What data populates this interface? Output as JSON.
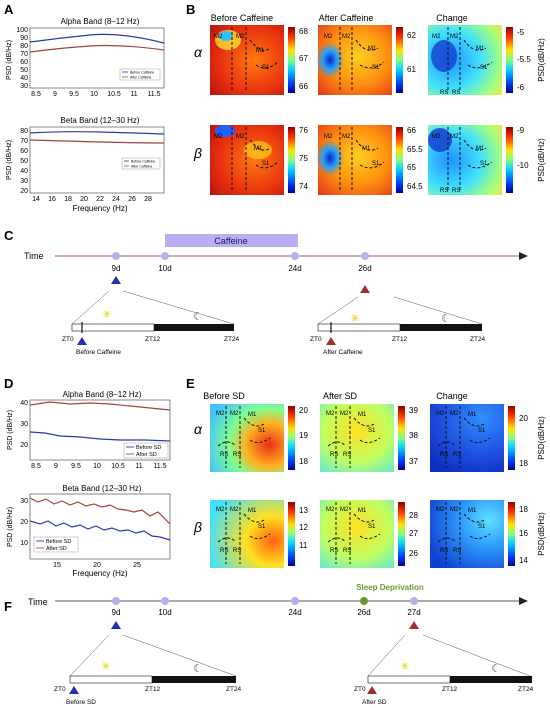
{
  "panels": {
    "A": {
      "letter": "A",
      "alpha": {
        "title": "Alpha Band (8–12 Hz)",
        "ylabel": "PSD (dB/Hz)",
        "yticks": [
          "30",
          "40",
          "50",
          "60",
          "70",
          "80",
          "90",
          "100"
        ],
        "xticks": [
          "8.5",
          "9",
          "9.5",
          "10",
          "10.5",
          "11",
          "11.5"
        ],
        "legend": [
          "Before Caffeine",
          "After Caffeine"
        ]
      },
      "beta": {
        "title": "Beta Band (12–30 Hz)",
        "ylabel": "PSD (dB/Hz)",
        "yticks": [
          "20",
          "30",
          "40",
          "50",
          "60",
          "70",
          "80"
        ],
        "xticks": [
          "14",
          "16",
          "18",
          "20",
          "22",
          "24",
          "26",
          "28"
        ],
        "legend": [
          "Before Caffeine",
          "After Caffeine"
        ],
        "xlabel": "Frequency (Hz)"
      }
    },
    "B": {
      "letter": "B",
      "headers": [
        "Before Caffeine",
        "After Caffeine",
        "Change"
      ],
      "alpha_symbol": "α",
      "beta_symbol": "β",
      "colorbars": {
        "alpha": [
          [
            "68",
            "67",
            "66"
          ],
          [
            "62",
            "61"
          ],
          [
            "-5",
            "-5.5",
            "-6"
          ]
        ],
        "beta": [
          [
            "76",
            "75",
            "74"
          ],
          [
            "66",
            "65.5",
            "65",
            "64.5"
          ],
          [
            "-9",
            "-10"
          ]
        ]
      },
      "side_label": "PSD(dB/Hz)"
    },
    "C": {
      "letter": "C",
      "time_label": "Time",
      "bar_label": "Caffeine",
      "days": [
        "9d",
        "10d",
        "24d",
        "26d"
      ],
      "left": {
        "zt": [
          "ZT0",
          "ZT12",
          "ZT24"
        ],
        "caption": "Before Caffeine"
      },
      "right": {
        "zt": [
          "ZT0",
          "ZT12",
          "ZT24"
        ],
        "caption": "After Caffeine"
      }
    },
    "D": {
      "letter": "D",
      "alpha": {
        "title": "Alpha Band (8–12 Hz)",
        "ylabel": "PSD (dB/Hz)",
        "yticks": [
          "20",
          "30",
          "40"
        ],
        "xticks": [
          "8.5",
          "9",
          "9.5",
          "10",
          "10.5",
          "11",
          "11.5"
        ],
        "legend": [
          "Before SD",
          "After SD"
        ]
      },
      "beta": {
        "title": "Beta Band (12–30 Hz)",
        "ylabel": "PSD (dB/Hz)",
        "yticks": [
          "10",
          "20",
          "30"
        ],
        "xticks": [
          "15",
          "20",
          "25"
        ],
        "legend": [
          "Before SD",
          "After SD"
        ],
        "xlabel": "Frequency (Hz)"
      }
    },
    "E": {
      "letter": "E",
      "headers": [
        "Before SD",
        "After SD",
        "Change"
      ],
      "alpha_symbol": "α",
      "beta_symbol": "β",
      "colorbars": {
        "alpha": [
          [
            "20",
            "19",
            "18"
          ],
          [
            "39",
            "38",
            "37"
          ],
          [
            "20",
            "18"
          ]
        ],
        "beta": [
          [
            "13",
            "12",
            "11"
          ],
          [
            "28",
            "27",
            "26"
          ],
          [
            "18",
            "16",
            "14"
          ]
        ]
      },
      "side_label": "PSD(dB/Hz)"
    },
    "F": {
      "letter": "F",
      "time_label": "Time",
      "sd_label": "Sleep Deprivation",
      "days": [
        "9d",
        "10d",
        "24d",
        "26d",
        "27d"
      ],
      "left": {
        "zt": [
          "ZT0",
          "ZT12",
          "ZT24"
        ],
        "caption": "Before SD"
      },
      "right": {
        "zt": [
          "ZT0",
          "ZT12",
          "ZT24"
        ],
        "caption": "After SD"
      }
    }
  },
  "region_labels": [
    "M2",
    "M2",
    "M1",
    "S1",
    "RS",
    "RS"
  ],
  "colors": {
    "blue": "#2a3aa8",
    "red": "#a0443a",
    "caffeine_bar": "#b9aef0",
    "day_dot": "#b4b0ec",
    "sd_dot": "#6b9a2c",
    "sd_text": "#6b9a2c",
    "before_tri": "#2030b0",
    "after_tri": "#a03028"
  }
}
